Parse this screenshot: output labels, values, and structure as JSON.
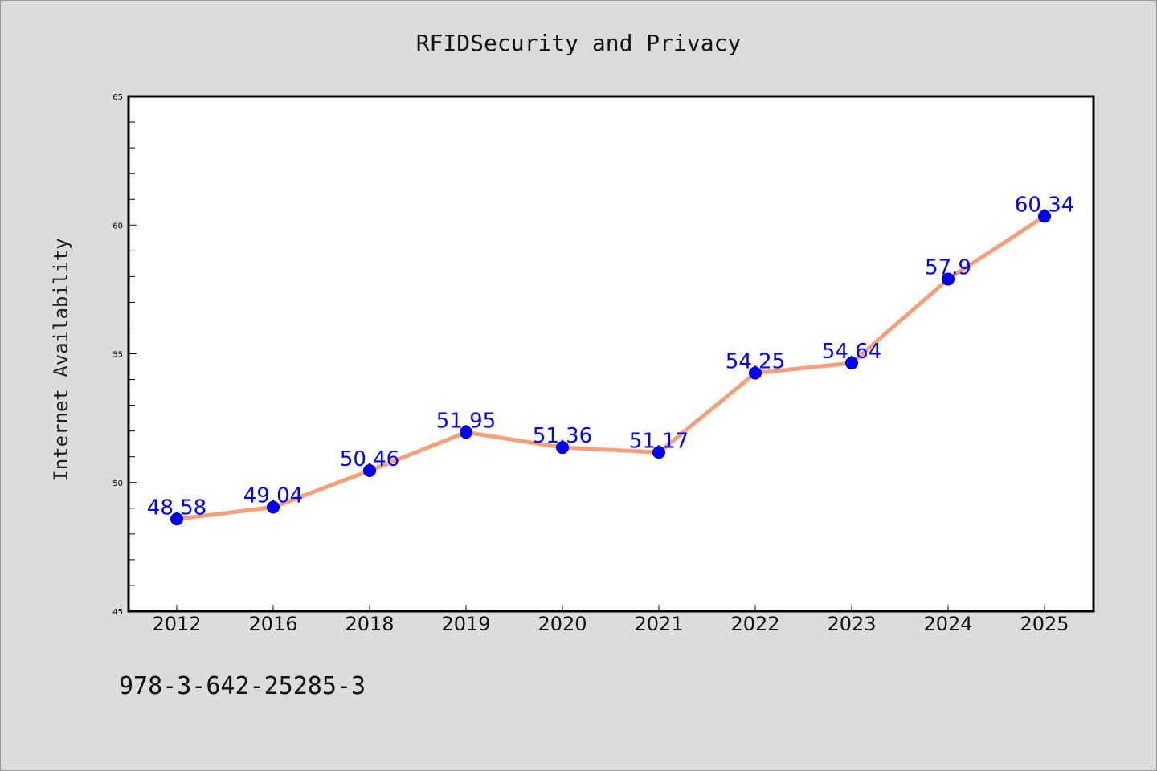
{
  "chart_data": {
    "type": "line",
    "title": "RFIDSecurity and Privacy",
    "xlabel": "",
    "ylabel": "Internet Availability",
    "categories": [
      "2012",
      "2016",
      "2018",
      "2019",
      "2020",
      "2021",
      "2022",
      "2023",
      "2024",
      "2025"
    ],
    "series": [
      {
        "values": [
          48.58,
          49.04,
          50.46,
          51.95,
          51.36,
          51.17,
          54.25,
          54.64,
          57.9,
          60.34
        ],
        "data_labels": [
          "48.58",
          "49.04",
          "50.46",
          "51.95",
          "51.36",
          "51.17",
          "54.25",
          "54.64",
          "57.9",
          "60.34"
        ]
      }
    ],
    "ylim": [
      45,
      65
    ],
    "yticks": [
      45,
      50,
      55,
      60,
      65
    ],
    "grid": false,
    "footnote": "978-3-642-25285-3",
    "colors": {
      "line": "#f4a07a",
      "marker": "#0000ff",
      "marker_edge": "#00008b",
      "data_label": "#0000ff",
      "plot_background": "#ffffff",
      "figure_background": "#dcdcdc"
    }
  }
}
